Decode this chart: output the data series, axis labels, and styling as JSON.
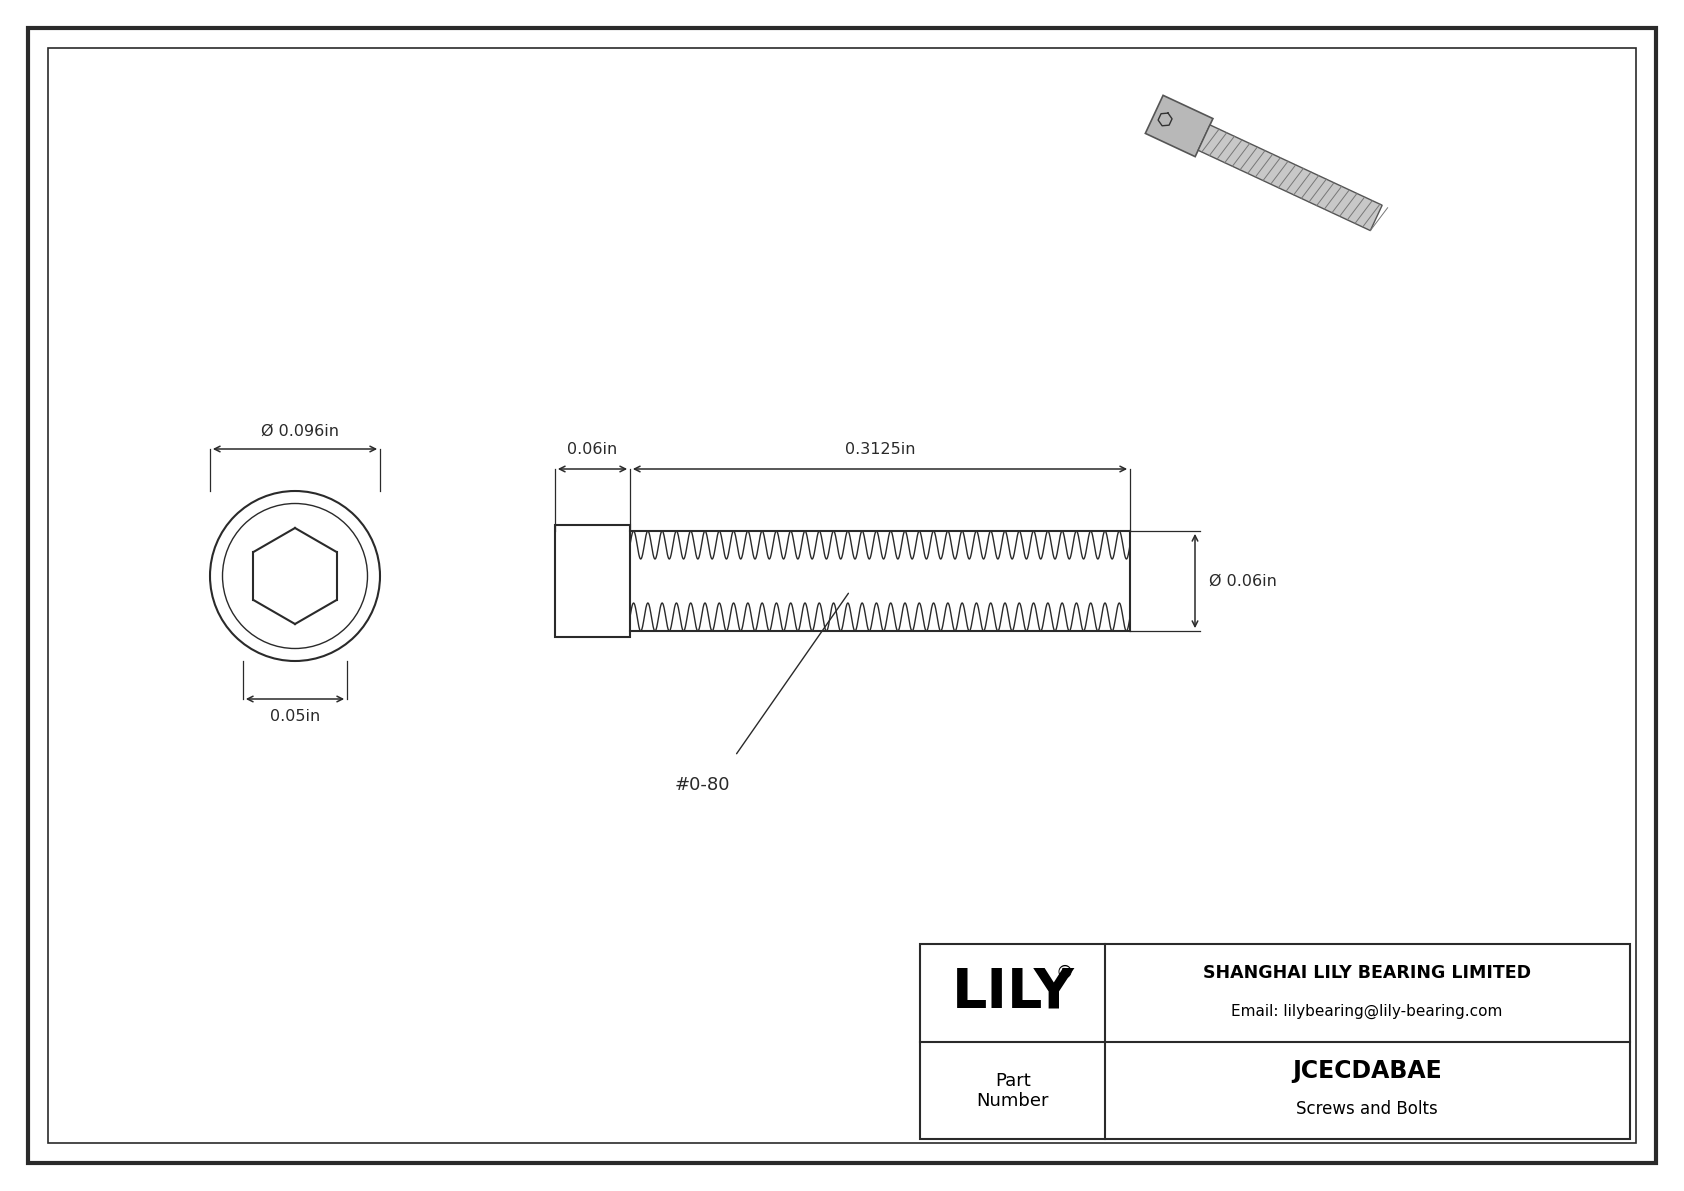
{
  "drawing_bg": "#ffffff",
  "border_color": "#000000",
  "line_color": "#2a2a2a",
  "dim_color": "#2a2a2a",
  "title": "JCECDABAE",
  "subtitle": "Screws and Bolts",
  "company": "SHANGHAI LILY BEARING LIMITED",
  "email": "Email: lilybearing@lily-bearing.com",
  "part_label": "Part\nNumber",
  "logo_reg": "®",
  "dim_od": "Ø 0.096in",
  "dim_head_h": "0.05in",
  "dim_head_w": "0.06in",
  "dim_thread_l": "0.3125in",
  "dim_thread_od": "Ø 0.06in",
  "thread_label": "#0-80",
  "font_family": "DejaVu Sans"
}
